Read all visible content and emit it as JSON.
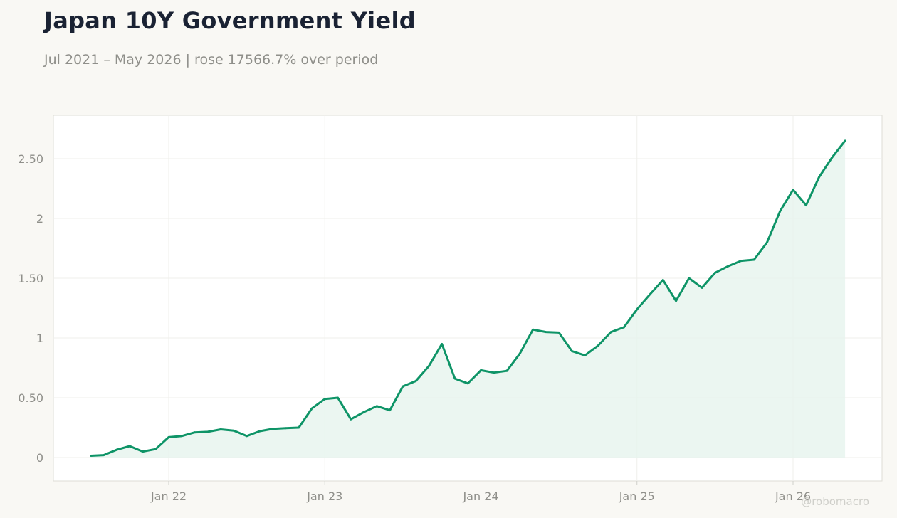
{
  "header": {
    "title": "Japan 10Y Government Yield",
    "subtitle": "Jul 2021 – May 2026 | rose 17566.7% over period"
  },
  "watermark": "@robomacro",
  "colors": {
    "line": "#0e9467",
    "fill": "#e6f4ee",
    "background": "#f9f8f4",
    "plot_background": "#ffffff"
  },
  "chart_data": {
    "type": "area",
    "title": "Japan 10Y Government Yield",
    "subtitle": "Jul 2021 – May 2026 | rose 17566.7% over period",
    "xlabel": "",
    "ylabel": "",
    "ylim": [
      -0.2,
      2.85
    ],
    "grid": true,
    "legend": "none",
    "y_ticks": [
      {
        "value": 0,
        "label": "0"
      },
      {
        "value": 0.5,
        "label": "0.50"
      },
      {
        "value": 1,
        "label": "1"
      },
      {
        "value": 1.5,
        "label": "1.50"
      },
      {
        "value": 2,
        "label": "2"
      },
      {
        "value": 2.5,
        "label": "2.50"
      }
    ],
    "x_ticks": [
      {
        "value": "2022-01",
        "label": "Jan 22"
      },
      {
        "value": "2023-01",
        "label": "Jan 23"
      },
      {
        "value": "2024-01",
        "label": "Jan 24"
      },
      {
        "value": "2025-01",
        "label": "Jan 25"
      },
      {
        "value": "2026-01",
        "label": "Jan 26"
      }
    ],
    "x": [
      "2021-07",
      "2021-08",
      "2021-09",
      "2021-10",
      "2021-11",
      "2021-12",
      "2022-01",
      "2022-02",
      "2022-03",
      "2022-04",
      "2022-05",
      "2022-06",
      "2022-07",
      "2022-08",
      "2022-09",
      "2022-10",
      "2022-11",
      "2022-12",
      "2023-01",
      "2023-02",
      "2023-03",
      "2023-04",
      "2023-05",
      "2023-06",
      "2023-07",
      "2023-08",
      "2023-09",
      "2023-10",
      "2023-11",
      "2023-12",
      "2024-01",
      "2024-02",
      "2024-03",
      "2024-04",
      "2024-05",
      "2024-06",
      "2024-07",
      "2024-08",
      "2024-09",
      "2024-10",
      "2024-11",
      "2024-12",
      "2025-01",
      "2025-02",
      "2025-03",
      "2025-04",
      "2025-05",
      "2025-06",
      "2025-07",
      "2025-08",
      "2025-09",
      "2025-10",
      "2025-11",
      "2025-12",
      "2026-01",
      "2026-02",
      "2026-03",
      "2026-04",
      "2026-05"
    ],
    "series": [
      {
        "values": [
          0.015,
          0.02,
          0.065,
          0.095,
          0.05,
          0.07,
          0.17,
          0.18,
          0.21,
          0.215,
          0.235,
          0.225,
          0.18,
          0.22,
          0.24,
          0.245,
          0.25,
          0.41,
          0.49,
          0.5,
          0.32,
          0.38,
          0.43,
          0.395,
          0.595,
          0.64,
          0.765,
          0.95,
          0.66,
          0.62,
          0.73,
          0.71,
          0.725,
          0.87,
          1.07,
          1.05,
          1.045,
          0.89,
          0.855,
          0.935,
          1.05,
          1.09,
          1.24,
          1.365,
          1.485,
          1.31,
          1.5,
          1.42,
          1.545,
          1.6,
          1.645,
          1.655,
          1.8,
          2.06,
          2.24,
          2.11,
          2.345,
          2.51,
          2.65
        ]
      }
    ]
  }
}
